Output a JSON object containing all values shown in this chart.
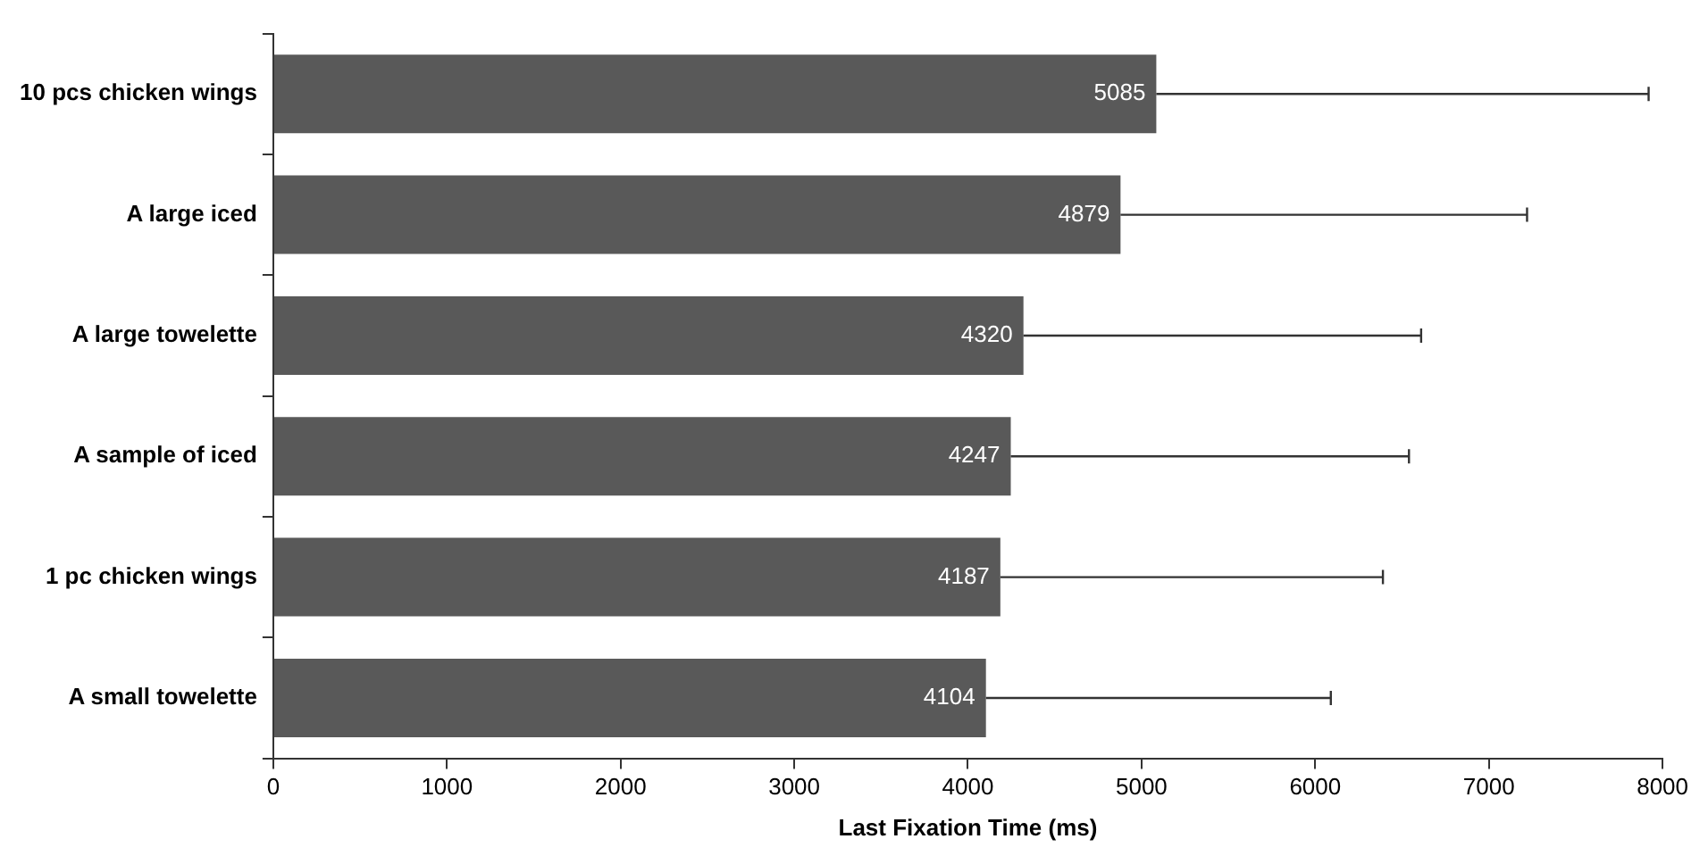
{
  "chart_data": {
    "type": "bar",
    "orientation": "horizontal",
    "xlabel": "Last Fixation Time (ms)",
    "categories": [
      "10 pcs chicken wings",
      "A large iced",
      "A large towelette",
      "A sample of iced",
      "1 pc chicken wings",
      "A small towelette"
    ],
    "values": [
      5085,
      4879,
      4320,
      4247,
      4187,
      4104
    ],
    "errors": [
      [
        5085,
        7920
      ],
      [
        4879,
        7220
      ],
      [
        4320,
        6610
      ],
      [
        4247,
        6540
      ],
      [
        4187,
        6390
      ],
      [
        4104,
        6090
      ]
    ],
    "color": "#595959",
    "data_labels": true,
    "xlim": [
      0,
      8000
    ],
    "xticks": [
      0,
      1000,
      2000,
      3000,
      4000,
      5000,
      6000,
      7000,
      8000
    ],
    "grid": false,
    "legend": false
  }
}
